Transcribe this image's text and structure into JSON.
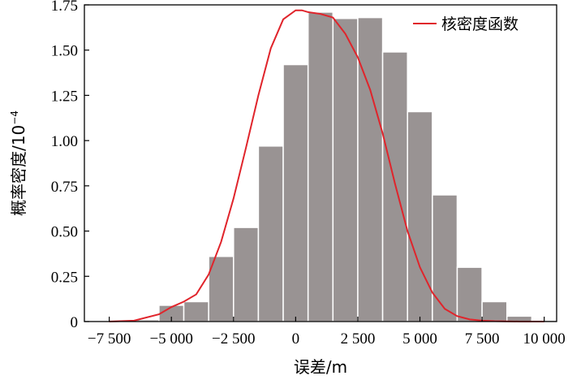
{
  "chart_data": {
    "type": "bar",
    "xlabel": "误差/m",
    "ylabel_main": "概率密度/10",
    "ylabel_exp": "−4",
    "xlim": [
      -8500,
      10500
    ],
    "ylim": [
      0,
      1.75
    ],
    "x_ticks": [
      -7500,
      -5000,
      -2500,
      0,
      2500,
      5000,
      7500,
      10000
    ],
    "x_tick_labels": [
      "−7 500",
      "−5 000",
      "−2 500",
      "0",
      "2 500",
      "5 000",
      "7 500",
      "10 000"
    ],
    "y_ticks": [
      0,
      0.25,
      0.5,
      0.75,
      1.0,
      1.25,
      1.5,
      1.75
    ],
    "y_tick_labels": [
      "0",
      "0.25",
      "0.50",
      "0.75",
      "1.00",
      "1.25",
      "1.50",
      "1.75"
    ],
    "bar_color": "#999393",
    "bar_edge_color": "#ffffff",
    "bin_width": 1000,
    "bins": [
      {
        "x0": -6500,
        "value": 0.01
      },
      {
        "x0": -5500,
        "value": 0.09
      },
      {
        "x0": -4500,
        "value": 0.11
      },
      {
        "x0": -3500,
        "value": 0.36
      },
      {
        "x0": -2500,
        "value": 0.52
      },
      {
        "x0": -1500,
        "value": 0.97
      },
      {
        "x0": -500,
        "value": 1.42
      },
      {
        "x0": 500,
        "value": 1.71
      },
      {
        "x0": 1500,
        "value": 1.675
      },
      {
        "x0": 2500,
        "value": 1.68
      },
      {
        "x0": 3500,
        "value": 1.49
      },
      {
        "x0": 4500,
        "value": 1.16
      },
      {
        "x0": 5500,
        "value": 0.7
      },
      {
        "x0": 6500,
        "value": 0.3
      },
      {
        "x0": 7500,
        "value": 0.11
      },
      {
        "x0": 8500,
        "value": 0.03
      },
      {
        "x0": 9500,
        "value": 0.008
      }
    ],
    "series": [
      {
        "name": "核密度函数",
        "type": "line",
        "color": "#e0242b",
        "x": [
          -7500,
          -6500,
          -5500,
          -5000,
          -4500,
          -4000,
          -3500,
          -3000,
          -2500,
          -2000,
          -1500,
          -1000,
          -500,
          0,
          250,
          500,
          1000,
          1500,
          2000,
          2500,
          3000,
          3500,
          4000,
          4500,
          5000,
          5500,
          6000,
          6500,
          7000,
          7500,
          8000,
          9000,
          10000
        ],
        "y": [
          0.0,
          0.005,
          0.04,
          0.08,
          0.11,
          0.15,
          0.26,
          0.44,
          0.68,
          0.96,
          1.25,
          1.51,
          1.67,
          1.72,
          1.72,
          1.71,
          1.7,
          1.68,
          1.59,
          1.46,
          1.28,
          1.04,
          0.76,
          0.5,
          0.3,
          0.16,
          0.07,
          0.03,
          0.012,
          0.005,
          0.002,
          0.0,
          0.0
        ]
      }
    ],
    "legend": {
      "position": "top-right",
      "label": "核密度函数"
    }
  }
}
